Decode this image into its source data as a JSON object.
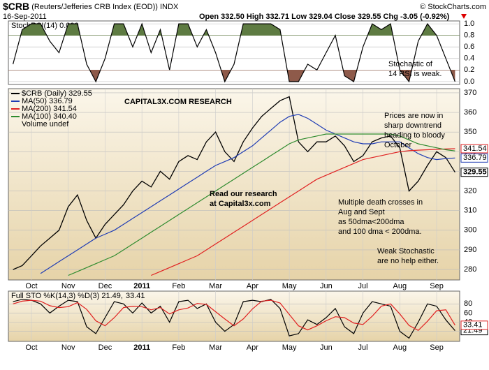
{
  "header": {
    "symbol": "$CRB",
    "name": "(Reuters/Jefferies CRB Index (EOD))",
    "exchange": "INDX",
    "date": "16-Sep-2011",
    "source": "© StockCharts.com",
    "quote": "Open 332.50 High 332.71 Low 329.04 Close 329.55 Chg -3.05 (-0.92%)"
  },
  "chart_data": [
    {
      "type": "line",
      "title": "StochRSI(14) 0.000",
      "color": "#000000",
      "values": [
        0.3,
        0.9,
        1,
        1,
        0.7,
        0.5,
        1,
        1,
        0.3,
        0,
        0.4,
        1,
        1,
        0.6,
        1,
        0.5,
        0.9,
        0.2,
        1,
        1,
        0.6,
        0.9,
        0.5,
        0,
        0.3,
        1,
        1,
        1,
        1,
        0.9,
        0,
        0,
        0.3,
        0.2,
        0.5,
        0.8,
        0.1,
        0,
        0.6,
        1,
        0.9,
        1,
        0.2,
        0,
        0.7,
        1,
        0.8,
        0.4,
        0
      ],
      "ylim": [
        -0.05,
        1.05
      ],
      "yticks": [
        {
          "value": 0,
          "label": "0.0"
        },
        0.2,
        0.4,
        0.6,
        0.8,
        {
          "value": 1,
          "label": "1.0"
        }
      ],
      "grid": true,
      "fill_above": {
        "level": 0.8,
        "color": "#5e7b42"
      },
      "fill_below": {
        "level": 0.2,
        "color": "#8e5a4a"
      },
      "annotations": [
        {
          "lines": [
            "Stochastic of",
            "14 RSI is weak."
          ]
        }
      ]
    },
    {
      "type": "line",
      "categories": [
        null,
        null,
        "Oct",
        null,
        null,
        null,
        "Nov",
        null,
        null,
        null,
        "Dec",
        null,
        null,
        null,
        "2011",
        null,
        null,
        null,
        "Feb",
        null,
        null,
        null,
        "Mar",
        null,
        null,
        null,
        "Apr",
        null,
        null,
        null,
        "May",
        null,
        null,
        null,
        "Jun",
        null,
        null,
        null,
        "Jul",
        null,
        null,
        null,
        "Aug",
        null,
        null,
        null,
        "Sep",
        null,
        null
      ],
      "series": [
        {
          "name": "$CRB (Daily) 329.55",
          "color": "#000000",
          "axis_box": true,
          "values": [
            280,
            282,
            287,
            292,
            296,
            300,
            312,
            318,
            305,
            296,
            303,
            308,
            313,
            320,
            325,
            322,
            330,
            326,
            335,
            338,
            336,
            345,
            350,
            340,
            335,
            345,
            352,
            358,
            362,
            366,
            368,
            345,
            340,
            345,
            345,
            348,
            343,
            335,
            338,
            345,
            347,
            348,
            342,
            320,
            325,
            333,
            340,
            337,
            329.55
          ]
        },
        {
          "name": "MA(50) 336.79",
          "color": "#1f3cb4",
          "axis_box": true,
          "values": [
            null,
            null,
            null,
            278,
            281,
            284,
            287,
            290,
            293,
            296,
            298,
            300,
            303,
            306,
            309,
            312,
            315,
            318,
            321,
            324,
            327,
            330,
            333,
            335,
            337,
            340,
            343,
            347,
            351,
            355,
            358,
            359,
            357,
            354,
            351,
            349,
            347,
            345,
            344,
            344,
            345,
            345,
            345,
            342,
            339,
            337,
            336,
            336.5,
            336.79
          ]
        },
        {
          "name": "MA(200) 341.54",
          "color": "#e02020",
          "axis_box": true,
          "values": [
            null,
            null,
            null,
            null,
            null,
            null,
            null,
            null,
            null,
            null,
            null,
            null,
            null,
            null,
            null,
            277,
            279,
            281,
            283,
            285,
            287,
            290,
            293,
            296,
            299,
            302,
            305,
            308,
            311,
            314,
            317,
            320,
            323,
            326,
            328,
            330,
            332,
            334,
            336,
            337,
            338,
            339,
            340,
            340.5,
            340.8,
            341,
            341.2,
            341.4,
            341.54
          ]
        },
        {
          "name": "MA(100) 340.40",
          "color": "#2e8b2e",
          "axis_box": false,
          "values": [
            null,
            null,
            null,
            null,
            null,
            null,
            277,
            279,
            281,
            283,
            285,
            287,
            290,
            293,
            296,
            299,
            302,
            305,
            308,
            311,
            314,
            317,
            320,
            323,
            326,
            329,
            332,
            335,
            338,
            341,
            344,
            346,
            347,
            348,
            349,
            349,
            349,
            349,
            349,
            349,
            349,
            349,
            348,
            346,
            344,
            343,
            342,
            341,
            340.4
          ]
        }
      ],
      "legend_extra": "Volume undef",
      "ylim": [
        274.7,
        372.1
      ],
      "yticks": [
        280,
        290,
        300,
        310,
        320,
        330,
        340,
        350,
        360,
        370
      ],
      "grid": true,
      "annotations": [
        {
          "lines": [
            "CAPITAL3X.COM RESEARCH"
          ]
        },
        {
          "lines": [
            "Read our research",
            "at Capital3x.com"
          ]
        },
        {
          "lines": [
            "Prices are now in",
            "sharp downtrend",
            "heading to bloody",
            "October"
          ]
        },
        {
          "lines": [
            "Multiple death crosses in",
            "Aug and Sept",
            "as 50dma<200dma",
            "and 100 dma < 200dma."
          ]
        },
        {
          "lines": [
            "Weak Stochastic",
            "are no help either."
          ]
        }
      ]
    },
    {
      "type": "line",
      "title": "Full STO %K(14,3) %D(3) 21.49,",
      "categories": [
        null,
        null,
        "Oct",
        null,
        null,
        null,
        "Nov",
        null,
        null,
        null,
        "Dec",
        null,
        null,
        null,
        "2011",
        null,
        null,
        null,
        "Feb",
        null,
        null,
        null,
        "Mar",
        null,
        null,
        null,
        "Apr",
        null,
        null,
        null,
        "May",
        null,
        null,
        null,
        "Jun",
        null,
        null,
        null,
        "Jul",
        null,
        null,
        null,
        "Aug",
        null,
        null,
        null,
        "Sep",
        null,
        null
      ],
      "series": [
        {
          "color": "#000000",
          "values": [
            85,
            90,
            88,
            80,
            60,
            75,
            88,
            85,
            30,
            15,
            50,
            85,
            80,
            60,
            82,
            60,
            75,
            40,
            85,
            88,
            70,
            80,
            40,
            20,
            35,
            85,
            88,
            85,
            90,
            70,
            10,
            15,
            45,
            35,
            50,
            70,
            30,
            15,
            60,
            85,
            80,
            75,
            20,
            5,
            40,
            80,
            75,
            45,
            21.49
          ]
        },
        {
          "color": "#e02020",
          "last_label": "33.41",
          "values": [
            80,
            86,
            88,
            86,
            76,
            72,
            74,
            83,
            68,
            43,
            32,
            50,
            72,
            75,
            74,
            67,
            72,
            58,
            67,
            71,
            81,
            79,
            63,
            47,
            32,
            47,
            69,
            86,
            88,
            82,
            57,
            32,
            23,
            32,
            43,
            52,
            50,
            38,
            35,
            53,
            75,
            80,
            58,
            33,
            22,
            42,
            65,
            67,
            33.41
          ]
        }
      ],
      "ylim": [
        -2,
        108
      ],
      "yticks": [
        20,
        40,
        60,
        80
      ],
      "grid": true
    }
  ]
}
